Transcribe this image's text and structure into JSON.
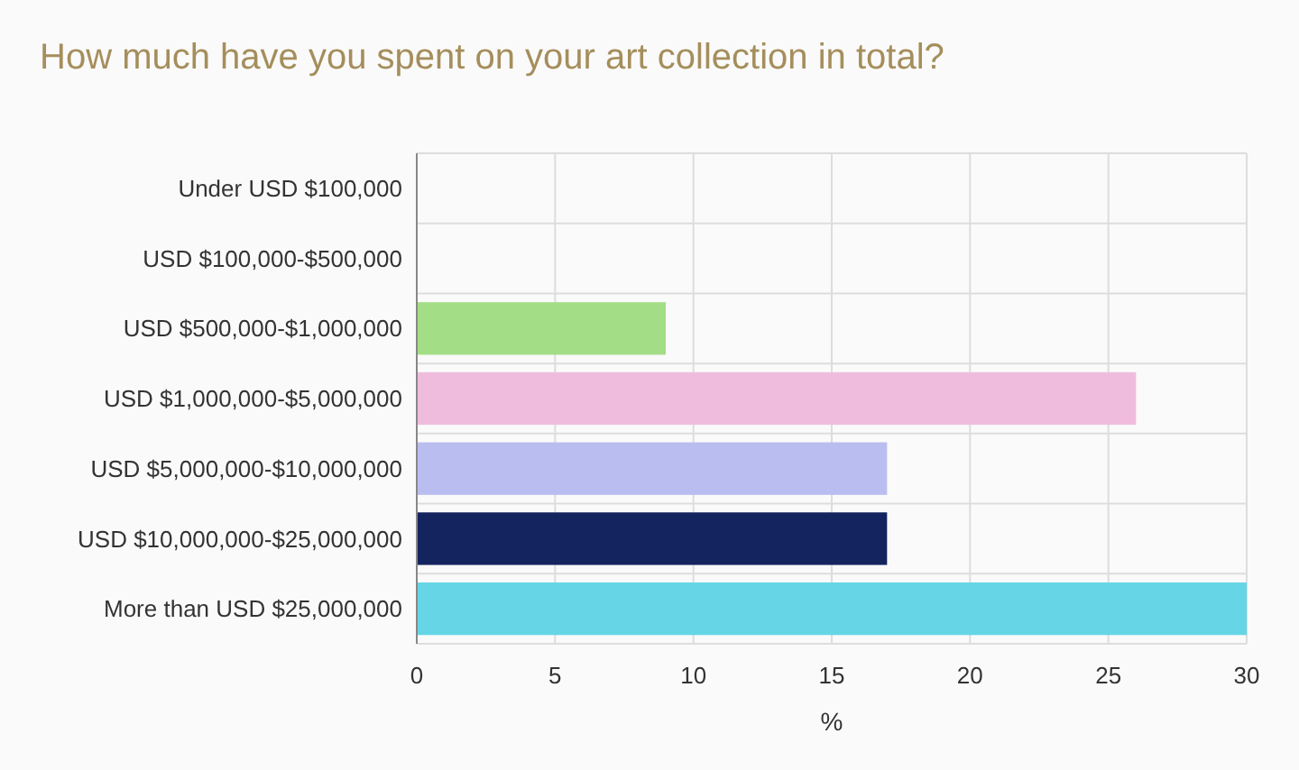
{
  "chart_data": {
    "type": "bar",
    "orientation": "horizontal",
    "title": "How much have you spent on your art collection in total?",
    "xlabel": "%",
    "categories": [
      "Under USD $100,000",
      "USD $100,000-$500,000",
      "USD $500,000-$1,000,000",
      "USD $1,000,000-$5,000,000",
      "USD $5,000,000-$10,000,000",
      "USD $10,000,000-$25,000,000",
      "More than USD $25,000,000"
    ],
    "values": [
      0,
      0,
      9,
      26,
      17,
      17,
      30
    ],
    "colors": [
      "#a3dd85",
      "#a3dd85",
      "#a3dd85",
      "#f0bcdd",
      "#b9bdf0",
      "#13245e",
      "#66d5e5"
    ],
    "xlim": [
      0,
      30
    ],
    "xticks": [
      0,
      5,
      10,
      15,
      20,
      25,
      30
    ],
    "grid": true
  }
}
